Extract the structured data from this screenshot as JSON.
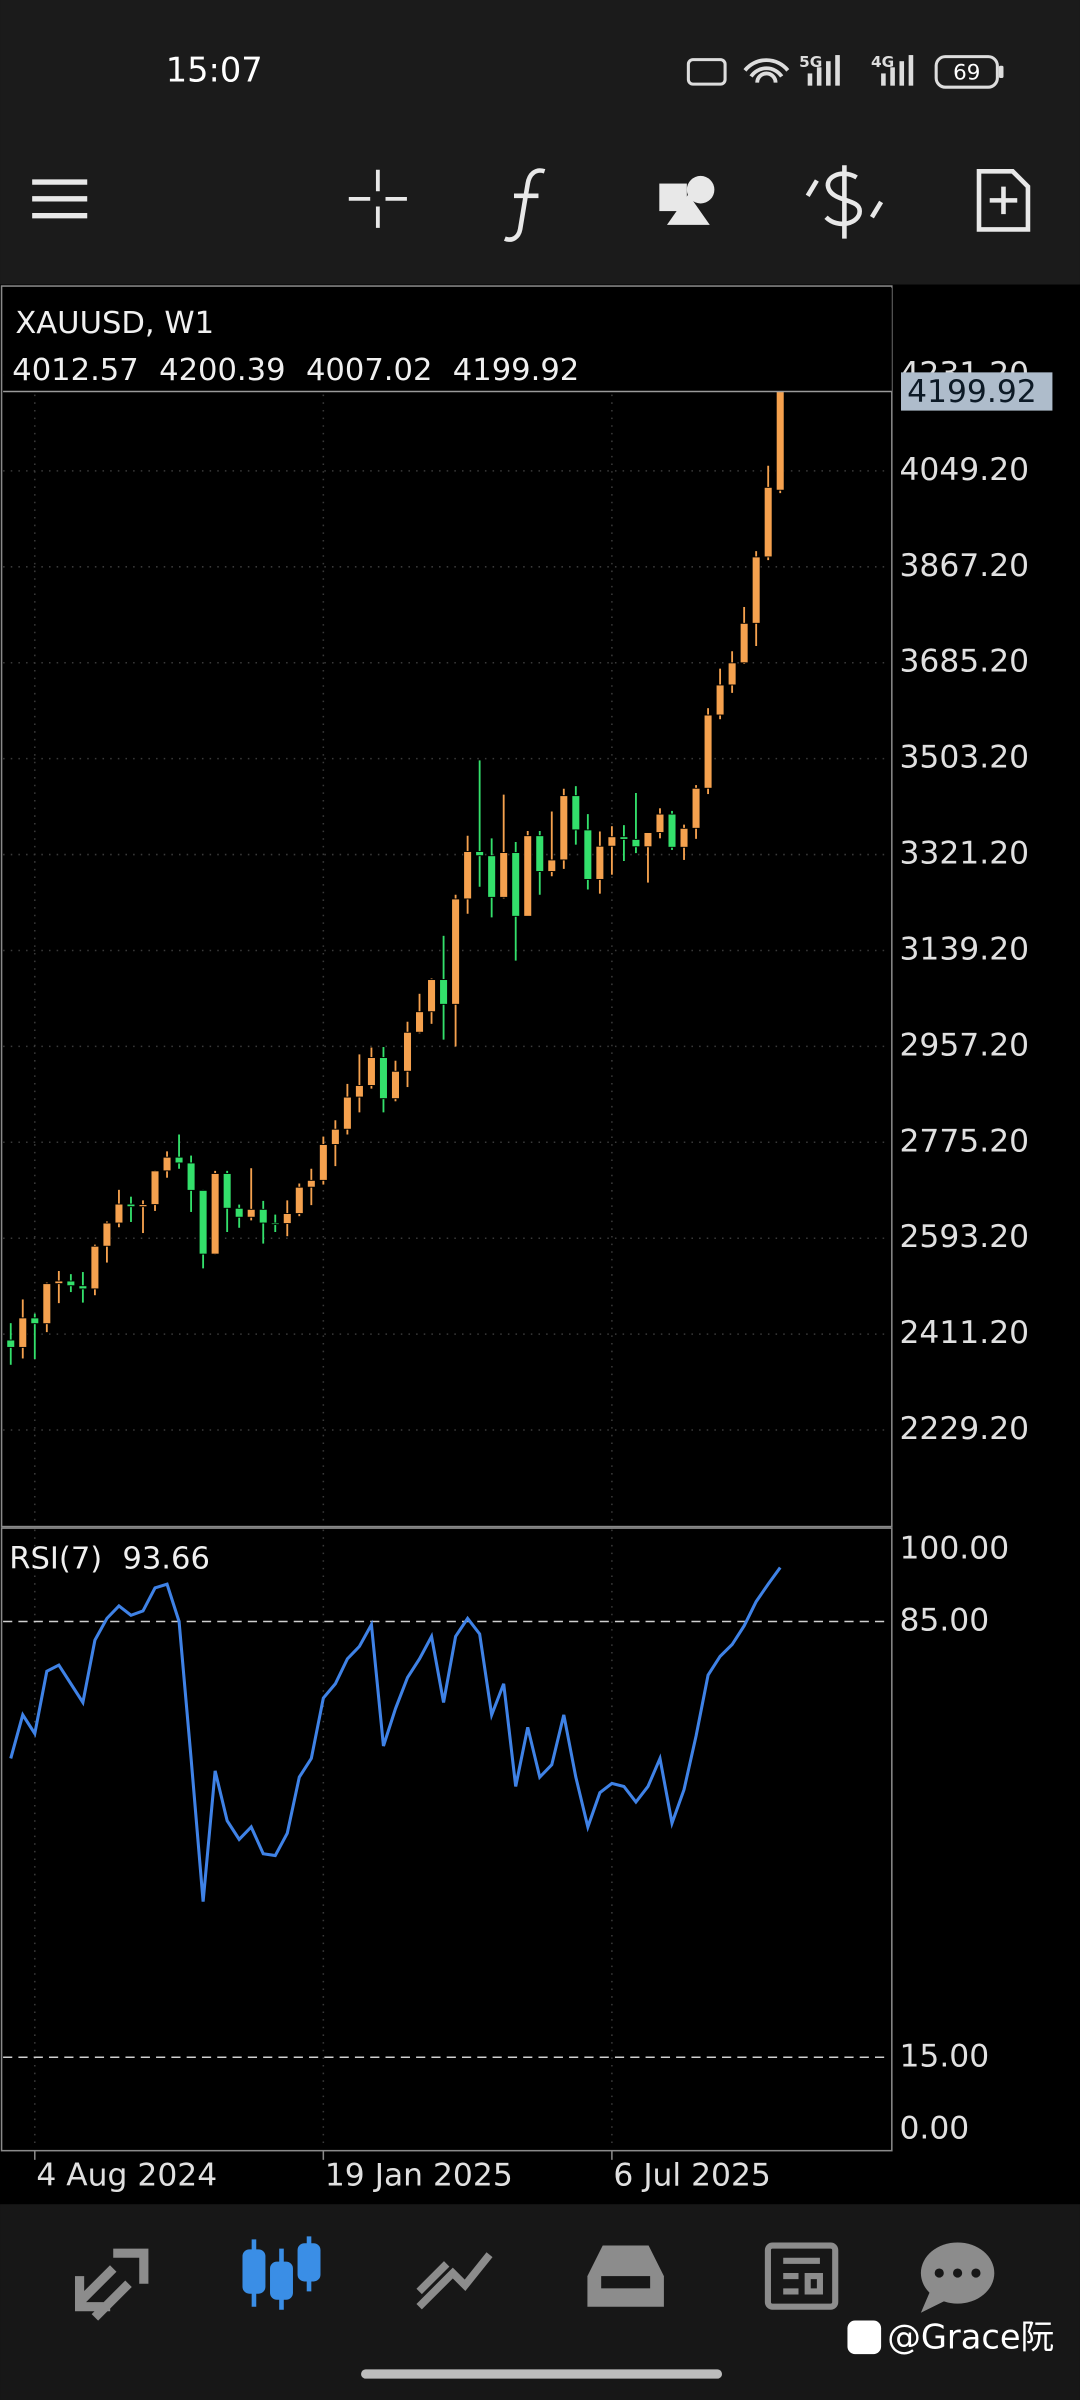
{
  "status_bar": {
    "time": "15:07",
    "network_1": "5G",
    "network_2": "4G",
    "battery": "69"
  },
  "chart_data": [
    {
      "type": "candlestick",
      "title": "XAUUSD, W1",
      "categories": [
        null,
        null,
        "4 Aug 2024",
        null,
        null,
        null,
        null,
        null,
        null,
        null,
        null,
        null,
        null,
        null,
        null,
        null,
        null,
        null,
        null,
        null,
        null,
        null,
        null,
        null,
        null,
        null,
        "19 Jan 2025",
        null,
        null,
        null,
        null,
        null,
        null,
        null,
        null,
        null,
        null,
        null,
        null,
        null,
        null,
        null,
        null,
        null,
        null,
        null,
        null,
        null,
        null,
        null,
        "6 Jul 2025",
        null,
        null,
        null,
        null,
        null,
        null,
        null,
        null,
        null,
        null,
        null,
        null,
        null,
        null
      ],
      "open": [
        2400,
        2386,
        2442,
        2431,
        2507,
        2512,
        2503,
        2497,
        2578,
        2622,
        2658,
        2653,
        2657,
        2721,
        2747,
        2736,
        2684,
        2563,
        2716,
        2650,
        2633,
        2648,
        2622,
        2621,
        2640,
        2690,
        2703,
        2771,
        2800,
        2861,
        2883,
        2936,
        2858,
        2910,
        2984,
        3023,
        3084,
        3037,
        3237,
        3327,
        3319,
        3240,
        3325,
        3204,
        3357,
        3289,
        3311,
        3433,
        3368,
        3274,
        3337,
        3355,
        3350,
        3336,
        3363,
        3398,
        3335,
        3371,
        3447,
        3586,
        3643,
        3685,
        3760,
        3886,
        4012.57
      ],
      "high": [
        2432,
        2477,
        2450,
        2509,
        2531,
        2525,
        2529,
        2581,
        2625,
        2685,
        2672,
        2665,
        2722,
        2758,
        2790,
        2750,
        2685,
        2721,
        2721,
        2657,
        2726,
        2664,
        2638,
        2665,
        2697,
        2725,
        2786,
        2817,
        2886,
        2942,
        2955,
        2956,
        2930,
        3004,
        3057,
        3086,
        3167,
        3245,
        3357,
        3500,
        3352,
        3435,
        3345,
        3366,
        3366,
        3403,
        3446,
        3451,
        3398,
        3365,
        3375,
        3377,
        3438,
        3363,
        3409,
        3404,
        3378,
        3453,
        3599,
        3674,
        3707,
        3791,
        3897,
        4059,
        4200.39
      ],
      "low": [
        2353,
        2365,
        2364,
        2415,
        2470,
        2491,
        2471,
        2485,
        2547,
        2614,
        2624,
        2603,
        2645,
        2708,
        2725,
        2643,
        2536,
        2562,
        2605,
        2613,
        2627,
        2583,
        2605,
        2597,
        2635,
        2656,
        2695,
        2730,
        2790,
        2832,
        2877,
        2832,
        2853,
        2880,
        2982,
        3000,
        2970,
        2957,
        3209,
        3260,
        3202,
        3238,
        3120,
        3204,
        3245,
        3280,
        3294,
        3340,
        3255,
        3247,
        3283,
        3309,
        3324,
        3268,
        3352,
        3330,
        3311,
        3351,
        3436,
        3578,
        3628,
        3683,
        3717,
        3880,
        4007.02
      ],
      "close": [
        2386,
        2442,
        2431,
        2507,
        2512,
        2503,
        2497,
        2578,
        2622,
        2658,
        2653,
        2657,
        2721,
        2747,
        2736,
        2684,
        2563,
        2716,
        2650,
        2633,
        2648,
        2622,
        2621,
        2640,
        2690,
        2703,
        2771,
        2800,
        2861,
        2883,
        2936,
        2858,
        2910,
        2984,
        3023,
        3084,
        3037,
        3237,
        3327,
        3319,
        3240,
        3325,
        3204,
        3357,
        3289,
        3311,
        3433,
        3368,
        3274,
        3337,
        3355,
        3350,
        3336,
        3363,
        3398,
        3335,
        3371,
        3447,
        3586,
        3643,
        3685,
        3760,
        3886,
        4018,
        4199.92
      ],
      "up_color": "#f5a14e",
      "down_color": "#33e06b",
      "ylim": [
        2046,
        4400
      ],
      "yticks": [
        {
          "value": 2229.2,
          "label": "2229.20"
        },
        {
          "value": 2411.2,
          "label": "2411.20"
        },
        {
          "value": 2593.2,
          "label": "2593.20"
        },
        {
          "value": 2775.2,
          "label": "2775.20"
        },
        {
          "value": 2957.2,
          "label": "2957.20"
        },
        {
          "value": 3139.2,
          "label": "3139.20"
        },
        {
          "value": 3321.2,
          "label": "3321.20"
        },
        {
          "value": 3503.2,
          "label": "3503.20"
        },
        {
          "value": 3685.2,
          "label": "3685.20"
        },
        {
          "value": 3867.2,
          "label": "3867.20"
        },
        {
          "value": 4049.2,
          "label": "4049.20"
        },
        {
          "value": 4231.2,
          "label": "4231.20"
        }
      ],
      "grid": true
    },
    {
      "type": "line",
      "title": "RSI(7)",
      "color": "#3f82e6",
      "values": [
        63,
        70,
        67,
        77,
        78,
        75,
        72,
        82,
        85.5,
        87.5,
        86,
        86.7,
        90.4,
        91,
        85,
        63,
        40,
        61,
        53,
        50,
        52,
        47.7,
        47.4,
        51,
        60,
        63,
        72.7,
        75,
        79,
        81,
        84.5,
        65,
        71,
        76,
        79,
        82.6,
        72,
        82.6,
        85.5,
        83,
        70,
        75,
        58.5,
        68,
        60,
        62,
        70,
        60,
        52,
        57.5,
        59,
        58.5,
        56,
        58.5,
        63,
        52.6,
        58,
        66.6,
        76.4,
        79.4,
        81.3,
        84.3,
        88.2,
        91,
        93.66
      ],
      "ylim": [
        0,
        100
      ],
      "yticks": [
        {
          "value": 0,
          "label": "0.00"
        },
        {
          "value": 15,
          "label": "15.00"
        },
        {
          "value": 85,
          "label": "85.00"
        },
        {
          "value": 100,
          "label": "100.00"
        }
      ],
      "grid": true
    }
  ],
  "watermark": "@Grace阮"
}
